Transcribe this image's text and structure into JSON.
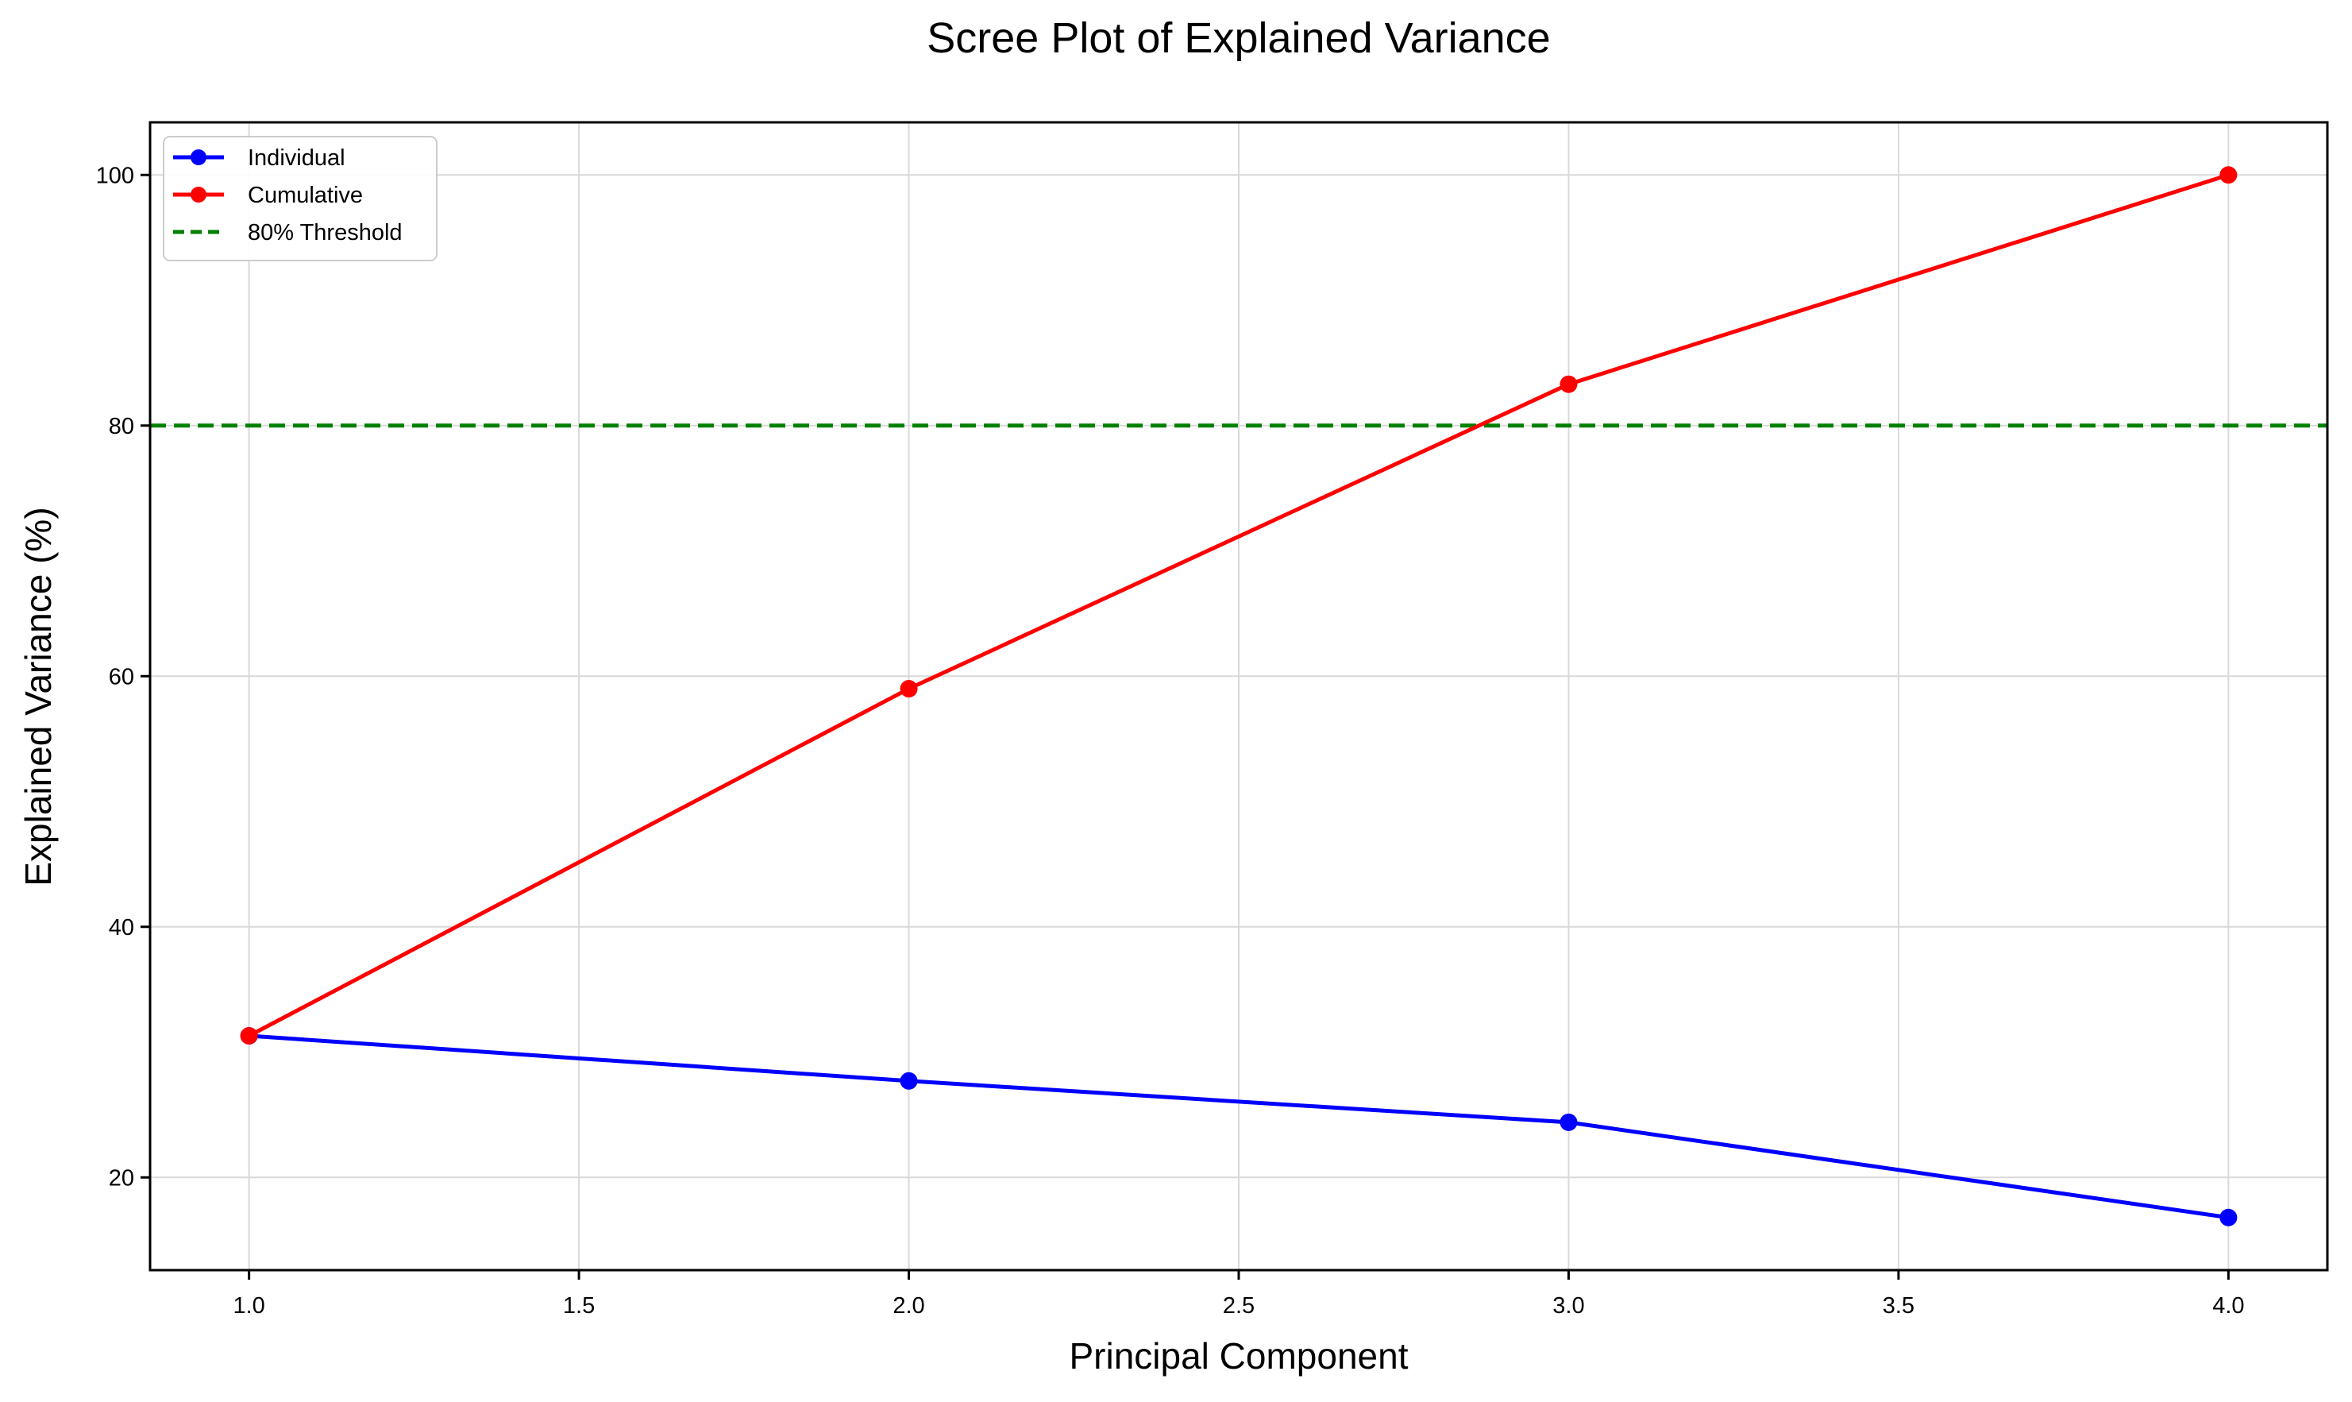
{
  "chart_data": {
    "type": "line",
    "title": "Scree Plot of Explained Variance",
    "xlabel": "Principal Component",
    "ylabel": "Explained Variance (%)",
    "xlim": [
      0.85,
      4.15
    ],
    "ylim": [
      12.6,
      104.2
    ],
    "xticks": [
      1.0,
      1.5,
      2.0,
      2.5,
      3.0,
      3.5,
      4.0
    ],
    "xtick_labels": [
      "1.0",
      "1.5",
      "2.0",
      "2.5",
      "3.0",
      "3.5",
      "4.0"
    ],
    "yticks": [
      20,
      40,
      60,
      80,
      100
    ],
    "ytick_labels": [
      "20",
      "40",
      "60",
      "80",
      "100"
    ],
    "grid": true,
    "legend_position": "top-left",
    "x": [
      1,
      2,
      3,
      4
    ],
    "series": [
      {
        "name": "Individual",
        "values": [
          31.3,
          27.7,
          24.4,
          16.8
        ],
        "color": "#0000ff",
        "marker": "circle",
        "line_style": "solid"
      },
      {
        "name": "Cumulative",
        "values": [
          31.3,
          59.0,
          83.3,
          100.0
        ],
        "color": "#ff0000",
        "marker": "circle",
        "line_style": "solid"
      }
    ],
    "reference_lines": [
      {
        "name": "80% Threshold",
        "orientation": "horizontal",
        "value": 80,
        "color": "#008000",
        "line_style": "dashed"
      }
    ]
  }
}
